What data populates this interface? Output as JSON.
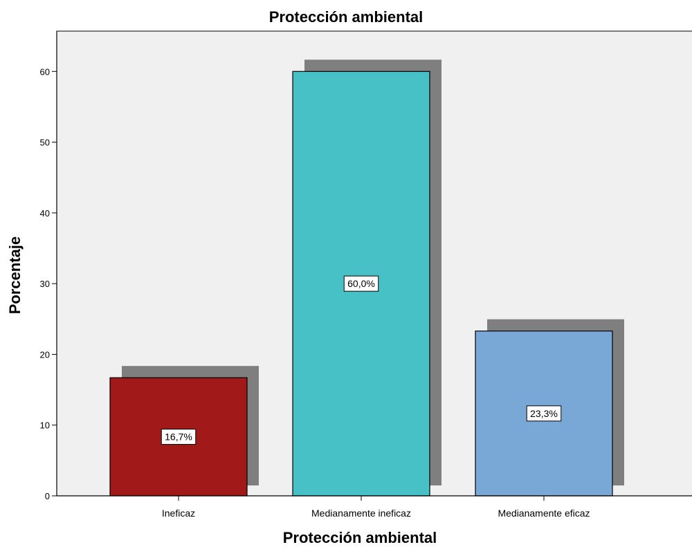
{
  "chart_data": {
    "type": "bar",
    "title": "Protección ambiental",
    "xlabel": "Protección ambiental",
    "ylabel": "Porcentaje",
    "categories": [
      "Ineficaz",
      "Medianamente ineficaz",
      "Medianamente eficaz"
    ],
    "values": [
      16.7,
      60.0,
      23.3
    ],
    "data_labels": [
      "16,7%",
      "60,0%",
      "23,3%"
    ],
    "ylim": [
      0,
      65.7
    ],
    "yticks": [
      0,
      10,
      20,
      30,
      40,
      50,
      60
    ],
    "grid": false,
    "legend": "none",
    "colors": {
      "bars": [
        "#a11919",
        "#48c1c6",
        "#7aa8d6"
      ],
      "shadow": "#7f7f7f",
      "plot_background": "#f0f0f0",
      "label_box": "#ffffff"
    }
  }
}
